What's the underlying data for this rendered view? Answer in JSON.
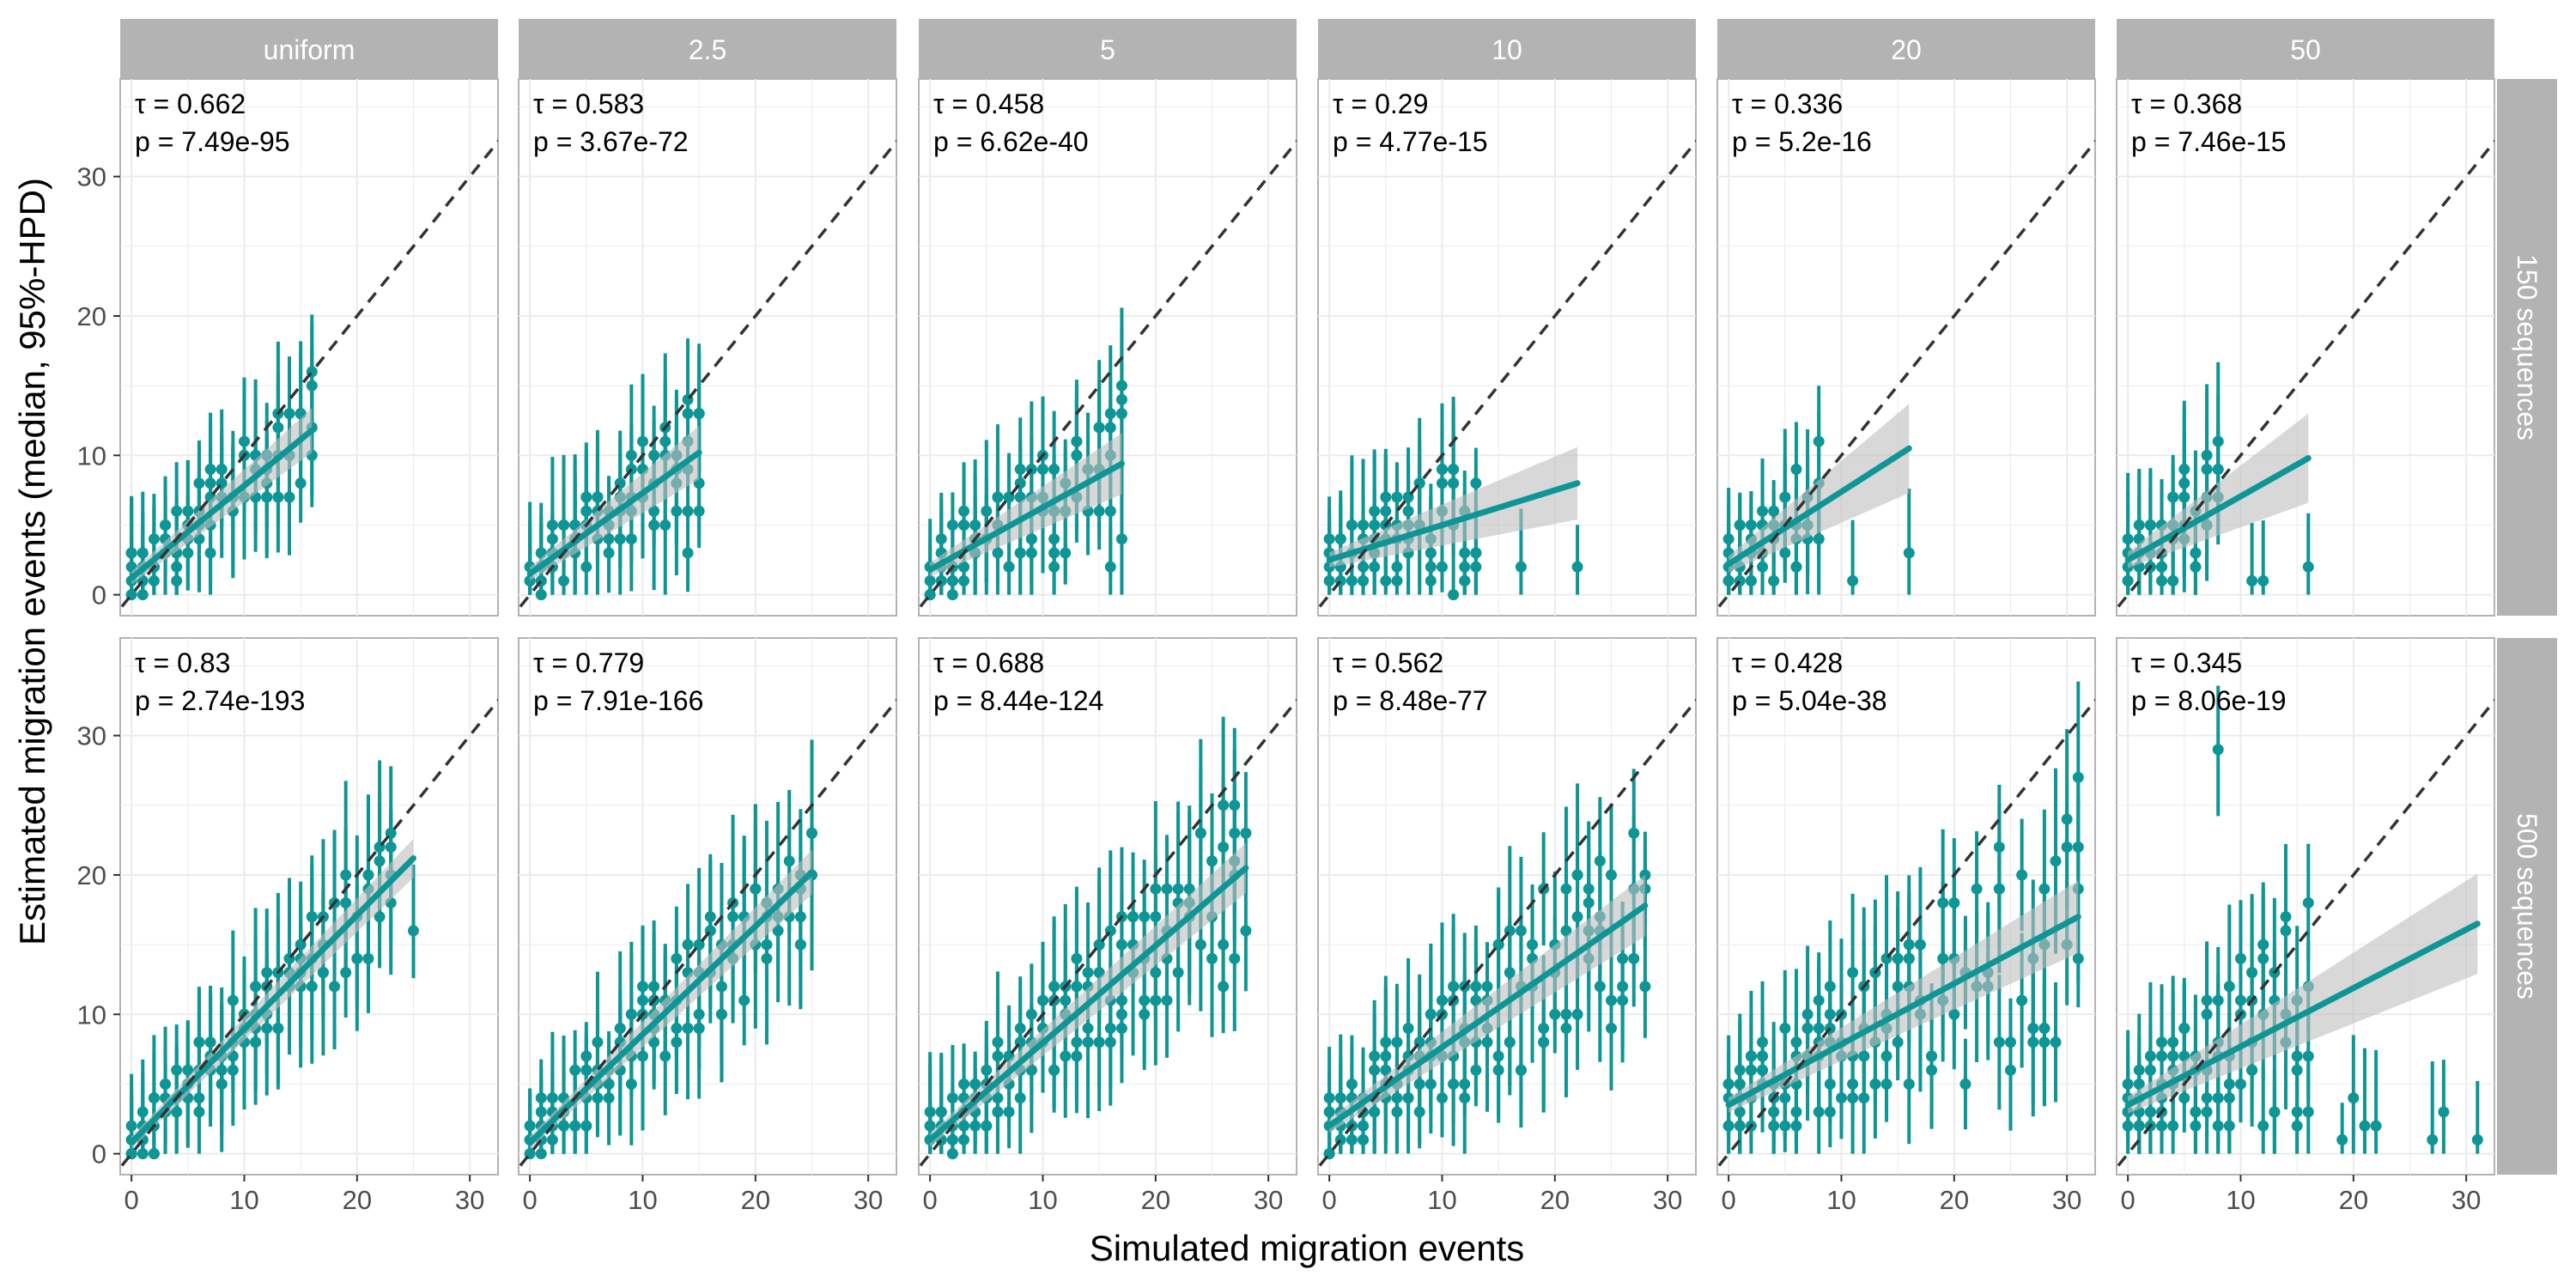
{
  "chart_data": {
    "type": "scatter",
    "xlabel": "Simulated migration events",
    "ylabel": "Estimated migration events (median, 95%-HPD)",
    "xlim": [
      -1,
      32.5
    ],
    "ylim": [
      -1.5,
      37
    ],
    "x_ticks": [
      0,
      10,
      20,
      30
    ],
    "y_ticks": [
      0,
      10,
      20,
      30
    ],
    "grid": true,
    "reference_line": "y = x (dashed)",
    "colors": {
      "points": "#0e9595",
      "fit": "#0e9595",
      "ribbon": "#bebebe",
      "strip": "#b3b3b3",
      "reference": "#333333"
    },
    "columns": [
      "uniform",
      "2.5",
      "5",
      "10",
      "20",
      "50"
    ],
    "rows": [
      "150 sequences",
      "500 sequences"
    ],
    "panels": [
      {
        "column": "uniform",
        "row": "150 sequences",
        "tau": "0.662",
        "p": "7.49e-95",
        "fit": [
          [
            0,
            1.2
          ],
          [
            16,
            11.8
          ]
        ],
        "xmax": 16,
        "spread": 0.2,
        "outliers": []
      },
      {
        "column": "2.5",
        "row": "150 sequences",
        "tau": "0.583",
        "p": "3.67e-72",
        "fit": [
          [
            0,
            1.5
          ],
          [
            15,
            10.2
          ]
        ],
        "xmax": 15,
        "spread": 0.28,
        "outliers": [
          [
            14,
            3
          ]
        ]
      },
      {
        "column": "5",
        "row": "150 sequences",
        "tau": "0.458",
        "p": "6.62e-40",
        "fit": [
          [
            0,
            1.8
          ],
          [
            17,
            9.4
          ]
        ],
        "xmax": 17,
        "spread": 0.35,
        "outliers": [
          [
            16,
            2
          ]
        ]
      },
      {
        "column": "10",
        "row": "150 sequences",
        "tau": "0.29",
        "p": "4.77e-15",
        "fit": [
          [
            0,
            2.5
          ],
          [
            22,
            8
          ]
        ],
        "xmax": 13,
        "spread": 0.45,
        "outliers": [
          [
            17,
            2
          ],
          [
            22,
            2
          ],
          [
            12,
            2
          ]
        ]
      },
      {
        "column": "20",
        "row": "150 sequences",
        "tau": "0.336",
        "p": "5.2e-16",
        "fit": [
          [
            0,
            2.2
          ],
          [
            16,
            10.5
          ]
        ],
        "xmax": 8,
        "spread": 0.6,
        "outliers": [
          [
            11,
            1
          ],
          [
            16,
            3
          ]
        ]
      },
      {
        "column": "50",
        "row": "150 sequences",
        "tau": "0.368",
        "p": "7.46e-15",
        "fit": [
          [
            0,
            2.5
          ],
          [
            16,
            9.8
          ]
        ],
        "xmax": 8,
        "spread": 0.6,
        "outliers": [
          [
            11,
            1
          ],
          [
            12,
            1
          ],
          [
            16,
            2
          ]
        ]
      },
      {
        "column": "uniform",
        "row": "500 sequences",
        "tau": "0.83",
        "p": "2.74e-193",
        "fit": [
          [
            0,
            0.8
          ],
          [
            25,
            21.2
          ]
        ],
        "xmax": 23,
        "spread": 0.15,
        "outliers": [
          [
            25,
            16
          ],
          [
            23,
            22
          ]
        ]
      },
      {
        "column": "2.5",
        "row": "500 sequences",
        "tau": "0.779",
        "p": "7.91e-166",
        "fit": [
          [
            0,
            0.8
          ],
          [
            25,
            20.2
          ]
        ],
        "xmax": 25,
        "spread": 0.2,
        "outliers": [
          [
            22,
            16
          ],
          [
            24,
            20
          ]
        ]
      },
      {
        "column": "5",
        "row": "500 sequences",
        "tau": "0.688",
        "p": "8.44e-124",
        "fit": [
          [
            0,
            1
          ],
          [
            28,
            20.5
          ]
        ],
        "xmax": 28,
        "spread": 0.25,
        "outliers": [
          [
            26,
            12
          ],
          [
            27,
            21
          ]
        ]
      },
      {
        "column": "10",
        "row": "500 sequences",
        "tau": "0.562",
        "p": "8.48e-77",
        "fit": [
          [
            0,
            2
          ],
          [
            28,
            17.8
          ]
        ],
        "xmax": 28,
        "spread": 0.35,
        "outliers": [
          [
            27,
            19
          ],
          [
            28,
            20
          ]
        ]
      },
      {
        "column": "20",
        "row": "500 sequences",
        "tau": "0.428",
        "p": "5.04e-38",
        "fit": [
          [
            0,
            3.5
          ],
          [
            31,
            17
          ]
        ],
        "xmax": 31,
        "spread": 0.45,
        "outliers": [
          [
            28,
            8
          ],
          [
            31,
            14
          ]
        ]
      },
      {
        "column": "50",
        "row": "500 sequences",
        "tau": "0.345",
        "p": "8.06e-19",
        "fit": [
          [
            0,
            3.5
          ],
          [
            31,
            16.5
          ]
        ],
        "xmax": 16,
        "spread": 0.7,
        "outliers": [
          [
            20,
            4
          ],
          [
            21,
            2
          ],
          [
            22,
            2
          ],
          [
            27,
            1
          ],
          [
            28,
            3
          ],
          [
            31,
            1
          ],
          [
            19,
            1
          ],
          [
            8,
            29
          ]
        ]
      }
    ]
  }
}
